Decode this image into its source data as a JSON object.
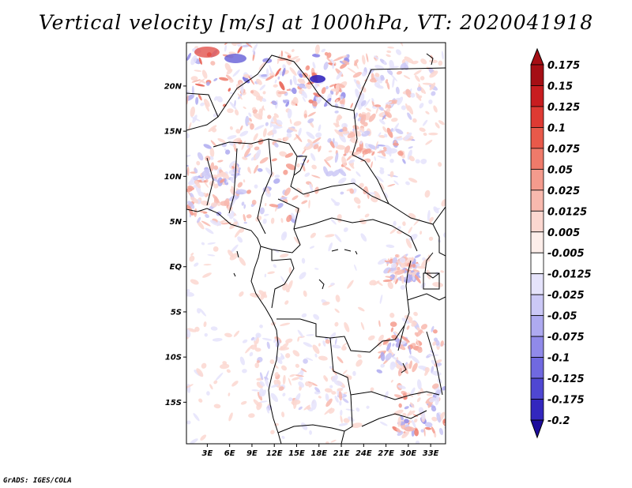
{
  "title": "Vertical velocity [m/s] at 1000hPa, VT: 2020041918",
  "credit": "GrADS: IGES/COLA",
  "map": {
    "lat_labels": [
      "20N",
      "15N",
      "10N",
      "5N",
      "EQ",
      "5S",
      "10S",
      "15S"
    ],
    "lat_values": [
      20,
      15,
      10,
      5,
      0,
      -5,
      -10,
      -15
    ],
    "lon_labels": [
      "3E",
      "6E",
      "9E",
      "12E",
      "15E",
      "18E",
      "21E",
      "24E",
      "27E",
      "30E",
      "33E"
    ],
    "lon_values": [
      3,
      6,
      9,
      12,
      15,
      18,
      21,
      24,
      27,
      30,
      33
    ],
    "lon_range": [
      0.2,
      35
    ],
    "lat_range": [
      -19.6,
      24.8
    ]
  },
  "colorbar": {
    "levels": [
      "0.175",
      "0.15",
      "0.125",
      "0.1",
      "0.075",
      "0.05",
      "0.025",
      "0.0125",
      "0.005",
      "-0.005",
      "-0.0125",
      "-0.025",
      "-0.05",
      "-0.075",
      "-0.1",
      "-0.125",
      "-0.175",
      "-0.2"
    ],
    "colors": [
      "#a50f15",
      "#c81d20",
      "#de3a33",
      "#e8594a",
      "#ef7a6a",
      "#f49b8d",
      "#f8b9ae",
      "#fbd7d0",
      "#fdeeea",
      "#ffffff",
      "#e5e3fb",
      "#cbc8f6",
      "#aeaaf0",
      "#908ae9",
      "#7069e0",
      "#4f47d2",
      "#3327be",
      "#1d0c9c"
    ]
  }
}
